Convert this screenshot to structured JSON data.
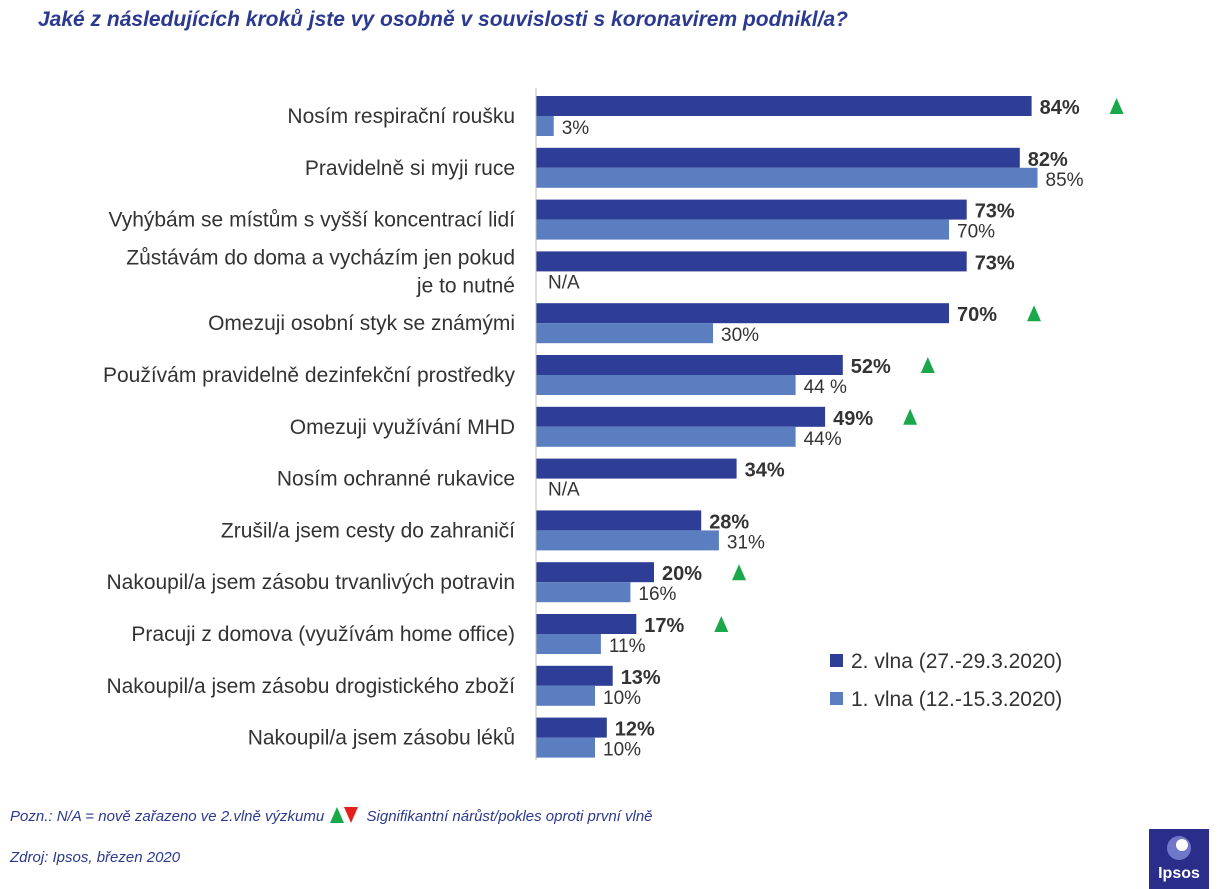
{
  "title": "Jaké z následujících kroků jste vy osobně v souvislosti  s koronavirem podnikl/a?",
  "footnote": {
    "prefix": "Pozn.: N/A = nově zařazeno ve 2.vlně výzkumu ",
    "suffix": " Signifikantní nárůst/pokles oproti první vlně"
  },
  "source": "Zdroj: Ipsos, březen 2020",
  "logo_text": "Ipsos",
  "colors": {
    "wave2": "#2e3d96",
    "wave1": "#5b7ec1",
    "up": "#1aa84a",
    "down": "#e3201b",
    "title": "#2b3990"
  },
  "chart_data": {
    "type": "bar",
    "orientation": "horizontal",
    "xlim": [
      0,
      100
    ],
    "categories": [
      [
        "Nosím respirační roušku"
      ],
      [
        "Pravidelně si myji ruce"
      ],
      [
        "Vyhýbám se místům s vyšší koncentrací lidí"
      ],
      [
        "Zůstávám do doma a vycházím jen pokud",
        "je to nutné"
      ],
      [
        "Omezuji osobní styk se známými"
      ],
      [
        "Používám pravidelně dezinfekční prostředky"
      ],
      [
        "Omezuji využívání MHD"
      ],
      [
        "Nosím ochranné rukavice"
      ],
      [
        "Zrušil/a jsem cesty do zahraničí"
      ],
      [
        "Nakoupil/a jsem zásobu trvanlivých potravin"
      ],
      [
        "Pracuji z domova (využívám home office)"
      ],
      [
        "Nakoupil/a jsem zásobu drogistického zboží"
      ],
      [
        "Nakoupil/a jsem zásobu léků"
      ]
    ],
    "series": [
      {
        "name": "2. vlna (27.-29.3.2020)",
        "values": [
          84,
          82,
          73,
          73,
          70,
          52,
          49,
          34,
          28,
          20,
          17,
          13,
          12
        ],
        "labels": [
          "84%",
          "82%",
          "73%",
          "73%",
          "70%",
          "52%",
          "49%",
          "34%",
          "28%",
          "20%",
          "17%",
          "13%",
          "12%"
        ],
        "significant_increase": [
          true,
          false,
          false,
          false,
          true,
          true,
          true,
          false,
          false,
          true,
          true,
          false,
          false
        ]
      },
      {
        "name": "1. vlna (12.-15.3.2020)",
        "values": [
          3,
          85,
          70,
          null,
          30,
          44,
          44,
          null,
          31,
          16,
          11,
          10,
          10
        ],
        "labels": [
          "3%",
          "85%",
          "70%",
          "N/A",
          "30%",
          "44 %",
          "44%",
          "N/A",
          "31%",
          "16%",
          "11%",
          "10%",
          "10%"
        ]
      }
    ],
    "legend": "bottom-right"
  }
}
